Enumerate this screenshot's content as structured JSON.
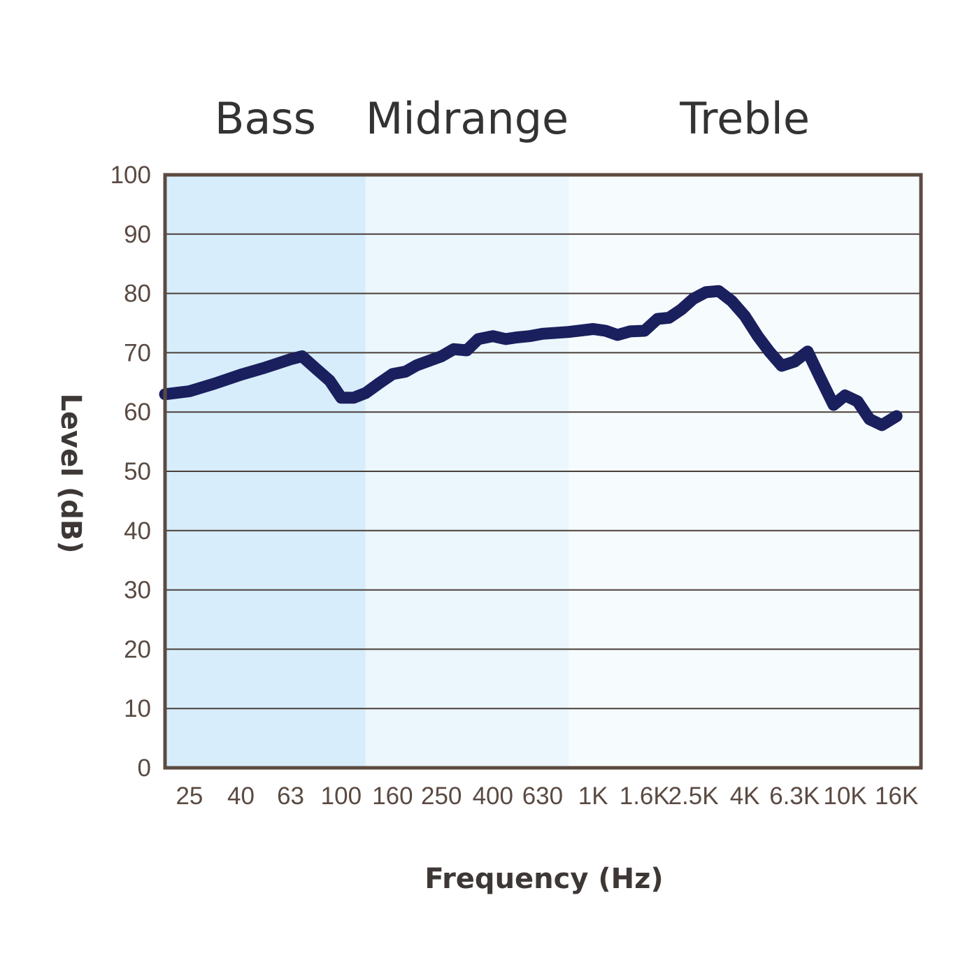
{
  "chart_data": {
    "type": "line",
    "title": "",
    "xlabel": "Frequency (Hz)",
    "ylabel": "Level (dB)",
    "ylim": [
      0,
      100
    ],
    "y_ticks": [
      0,
      10,
      20,
      30,
      40,
      50,
      60,
      70,
      80,
      90,
      100
    ],
    "x_scale": "log",
    "x_ticks": [
      "25",
      "40",
      "63",
      "100",
      "160",
      "250",
      "400",
      "630",
      "1K",
      "1.6K",
      "2.5K",
      "4K",
      "6.3K",
      "10K",
      "16K"
    ],
    "grid": "horizontal",
    "bands": [
      {
        "label": "Bass",
        "from": 20,
        "to": 125,
        "color": "#d7edfb"
      },
      {
        "label": "Midrange",
        "from": 125,
        "to": 800,
        "color": "#ebf6fd"
      },
      {
        "label": "Treble",
        "from": 800,
        "to": 20000,
        "color": "#f6fbfe"
      }
    ],
    "series": [
      {
        "color": "#1a1f5e",
        "points": [
          {
            "x": 20,
            "y": 63.0
          },
          {
            "x": 25,
            "y": 63.5
          },
          {
            "x": 31.5,
            "y": 64.8
          },
          {
            "x": 40,
            "y": 66.3
          },
          {
            "x": 50,
            "y": 67.5
          },
          {
            "x": 63,
            "y": 68.9
          },
          {
            "x": 70,
            "y": 69.4
          },
          {
            "x": 80,
            "y": 67.2
          },
          {
            "x": 90,
            "y": 65.3
          },
          {
            "x": 100,
            "y": 62.4
          },
          {
            "x": 112,
            "y": 62.4
          },
          {
            "x": 125,
            "y": 63.2
          },
          {
            "x": 140,
            "y": 64.7
          },
          {
            "x": 160,
            "y": 66.4
          },
          {
            "x": 180,
            "y": 66.8
          },
          {
            "x": 200,
            "y": 67.9
          },
          {
            "x": 250,
            "y": 69.4
          },
          {
            "x": 280,
            "y": 70.6
          },
          {
            "x": 315,
            "y": 70.4
          },
          {
            "x": 350,
            "y": 72.3
          },
          {
            "x": 400,
            "y": 72.8
          },
          {
            "x": 450,
            "y": 72.3
          },
          {
            "x": 500,
            "y": 72.6
          },
          {
            "x": 560,
            "y": 72.8
          },
          {
            "x": 630,
            "y": 73.2
          },
          {
            "x": 800,
            "y": 73.5
          },
          {
            "x": 1000,
            "y": 74.0
          },
          {
            "x": 1120,
            "y": 73.7
          },
          {
            "x": 1250,
            "y": 73.0
          },
          {
            "x": 1400,
            "y": 73.6
          },
          {
            "x": 1600,
            "y": 73.7
          },
          {
            "x": 1800,
            "y": 75.7
          },
          {
            "x": 2000,
            "y": 75.9
          },
          {
            "x": 2240,
            "y": 77.3
          },
          {
            "x": 2500,
            "y": 79.1
          },
          {
            "x": 2800,
            "y": 80.2
          },
          {
            "x": 3150,
            "y": 80.4
          },
          {
            "x": 3550,
            "y": 78.7
          },
          {
            "x": 4000,
            "y": 76.2
          },
          {
            "x": 4500,
            "y": 72.8
          },
          {
            "x": 5000,
            "y": 70.2
          },
          {
            "x": 5600,
            "y": 67.8
          },
          {
            "x": 6300,
            "y": 68.5
          },
          {
            "x": 7100,
            "y": 70.2
          },
          {
            "x": 8000,
            "y": 65.6
          },
          {
            "x": 9000,
            "y": 61.2
          },
          {
            "x": 10000,
            "y": 62.8
          },
          {
            "x": 11200,
            "y": 61.8
          },
          {
            "x": 12500,
            "y": 58.8
          },
          {
            "x": 14000,
            "y": 57.8
          },
          {
            "x": 16000,
            "y": 59.3
          }
        ]
      }
    ]
  }
}
